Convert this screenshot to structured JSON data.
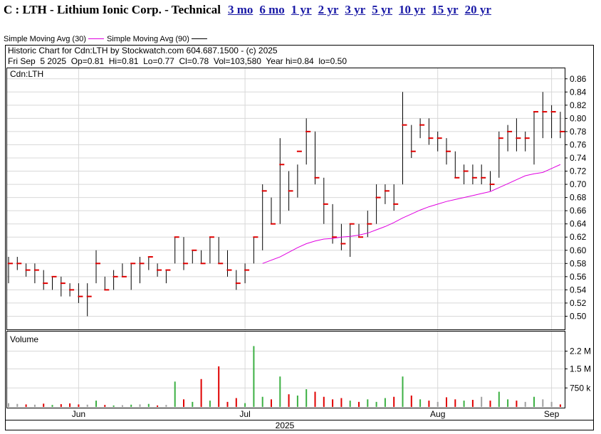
{
  "header": {
    "title": "C : LTH - Lithium Ionic Corp. - Technical",
    "links": [
      "3 mo",
      "6 mo",
      "1 yr",
      "2 yr",
      "3 yr",
      "5 yr",
      "10 yr",
      "15 yr",
      "20 yr"
    ]
  },
  "chart_data": {
    "type": "ohlc",
    "title": "Historic Chart for Cdn:LTH by Stockwatch.com 604.687.1500 - (c) 2025",
    "subtitle": "Fri Sep  5 2025  Op=0.81  Hi=0.81  Lo=0.77  Cl=0.78  Vol=103,580  Year hi=0.84  lo=0.50",
    "price_label": "Cdn:LTH",
    "volume_label": "Volume",
    "year_label": "2025",
    "categories": [
      null,
      null,
      null,
      null,
      null,
      null,
      null,
      null,
      "Jun",
      null,
      null,
      null,
      null,
      null,
      null,
      null,
      null,
      null,
      null,
      null,
      null,
      null,
      null,
      null,
      null,
      null,
      null,
      "Jul",
      null,
      null,
      null,
      null,
      null,
      null,
      null,
      null,
      null,
      null,
      null,
      null,
      null,
      null,
      null,
      null,
      null,
      null,
      null,
      null,
      null,
      "Aug",
      null,
      null,
      null,
      null,
      null,
      null,
      null,
      null,
      null,
      null,
      null,
      null,
      "Sep",
      null
    ],
    "high": [
      0.59,
      0.59,
      0.58,
      0.58,
      0.57,
      0.56,
      0.56,
      0.55,
      0.55,
      0.55,
      0.6,
      0.56,
      0.57,
      0.58,
      0.58,
      0.59,
      0.59,
      0.58,
      0.57,
      0.62,
      0.62,
      0.6,
      0.6,
      0.62,
      0.62,
      0.6,
      0.57,
      0.58,
      0.62,
      0.7,
      0.68,
      0.77,
      0.72,
      0.73,
      0.8,
      0.78,
      0.71,
      0.67,
      0.64,
      0.64,
      0.64,
      0.66,
      0.7,
      0.7,
      0.7,
      0.84,
      0.79,
      0.8,
      0.8,
      0.78,
      0.77,
      0.75,
      0.73,
      0.73,
      0.73,
      0.72,
      0.78,
      0.79,
      0.8,
      0.78,
      0.81,
      0.84,
      0.82,
      0.81
    ],
    "low": [
      0.55,
      0.57,
      0.56,
      0.55,
      0.54,
      0.54,
      0.53,
      0.53,
      0.52,
      0.5,
      0.55,
      0.54,
      0.54,
      0.56,
      0.54,
      0.55,
      0.57,
      0.56,
      0.55,
      0.58,
      0.57,
      0.58,
      0.58,
      0.58,
      0.58,
      0.56,
      0.54,
      0.55,
      0.58,
      0.6,
      0.64,
      0.64,
      0.66,
      0.68,
      0.73,
      0.7,
      0.64,
      0.61,
      0.6,
      0.59,
      0.62,
      0.62,
      0.64,
      0.67,
      0.66,
      0.7,
      0.74,
      0.77,
      0.76,
      0.75,
      0.73,
      0.71,
      0.7,
      0.7,
      0.7,
      0.69,
      0.71,
      0.75,
      0.75,
      0.75,
      0.73,
      0.77,
      0.77,
      0.77
    ],
    "close": [
      0.58,
      0.58,
      0.57,
      0.57,
      0.55,
      0.56,
      0.55,
      0.54,
      0.53,
      0.53,
      0.58,
      0.54,
      0.56,
      0.56,
      0.58,
      0.58,
      0.59,
      0.57,
      0.57,
      0.62,
      0.58,
      0.6,
      0.58,
      0.62,
      0.58,
      0.57,
      0.55,
      0.57,
      0.62,
      0.69,
      0.64,
      0.73,
      0.69,
      0.75,
      0.78,
      0.71,
      0.67,
      0.62,
      0.61,
      0.64,
      0.62,
      0.64,
      0.68,
      0.69,
      0.67,
      0.79,
      0.75,
      0.79,
      0.77,
      0.77,
      0.75,
      0.71,
      0.72,
      0.71,
      0.71,
      0.7,
      0.77,
      0.78,
      0.77,
      0.77,
      0.81,
      0.81,
      0.81,
      0.78
    ],
    "series": [
      {
        "name": "Simple Moving Avg (30)",
        "color": "#e000e0",
        "values": [
          null,
          null,
          null,
          null,
          null,
          null,
          null,
          null,
          null,
          null,
          null,
          null,
          null,
          null,
          null,
          null,
          null,
          null,
          null,
          null,
          null,
          null,
          null,
          null,
          null,
          null,
          null,
          null,
          null,
          0.58,
          0.585,
          0.59,
          0.597,
          0.604,
          0.61,
          0.614,
          0.617,
          0.618,
          0.62,
          0.621,
          0.623,
          0.626,
          0.631,
          0.636,
          0.642,
          0.649,
          0.655,
          0.661,
          0.666,
          0.67,
          0.674,
          0.677,
          0.68,
          0.683,
          0.686,
          0.689,
          0.695,
          0.701,
          0.707,
          0.713,
          0.716,
          0.718,
          0.724,
          0.73
        ]
      },
      {
        "name": "Simple Moving Avg (90)",
        "color": "#000000",
        "values": [
          null,
          null,
          null,
          null,
          null,
          null,
          null,
          null,
          null,
          null,
          null,
          null,
          null,
          null,
          null,
          null,
          null,
          null,
          null,
          null,
          null,
          null,
          null,
          null,
          null,
          null,
          null,
          null,
          null,
          null,
          null,
          null,
          null,
          null,
          null,
          null,
          null,
          null,
          null,
          null,
          null,
          null,
          null,
          null,
          null,
          null,
          null,
          null,
          null,
          null,
          null,
          null,
          null,
          null,
          null,
          null,
          null,
          null,
          null,
          null,
          null,
          null,
          null,
          null
        ]
      }
    ],
    "volume": [
      150000,
      120000,
      100000,
      90000,
      130000,
      80000,
      110000,
      140000,
      100000,
      90000,
      250000,
      80000,
      60000,
      70000,
      90000,
      100000,
      120000,
      60000,
      80000,
      1000000,
      300000,
      200000,
      1100000,
      250000,
      1600000,
      200000,
      350000,
      150000,
      2400000,
      400000,
      300000,
      1200000,
      500000,
      450000,
      700000,
      600000,
      400000,
      300000,
      350000,
      250000,
      200000,
      300000,
      200000,
      350000,
      400000,
      1200000,
      450000,
      300000,
      250000,
      200000,
      380000,
      300000,
      250000,
      280000,
      400000,
      250000,
      600000,
      300000,
      250000,
      200000,
      400000,
      300000,
      200000,
      100000
    ],
    "up_color": "#3cb043",
    "down_color": "#e00000",
    "flat_color": "#a0a0a0",
    "ylim": [
      0.48,
      0.877
    ],
    "yticks": [
      {
        "value": 0.5,
        "label": "0.50"
      },
      {
        "value": 0.52,
        "label": "0.52"
      },
      {
        "value": 0.54,
        "label": "0.54"
      },
      {
        "value": 0.56,
        "label": "0.56"
      },
      {
        "value": 0.58,
        "label": "0.58"
      },
      {
        "value": 0.6,
        "label": "0.60"
      },
      {
        "value": 0.62,
        "label": "0.62"
      },
      {
        "value": 0.64,
        "label": "0.64"
      },
      {
        "value": 0.66,
        "label": "0.66"
      },
      {
        "value": 0.68,
        "label": "0.68"
      },
      {
        "value": 0.7,
        "label": "0.70"
      },
      {
        "value": 0.72,
        "label": "0.72"
      },
      {
        "value": 0.74,
        "label": "0.74"
      },
      {
        "value": 0.76,
        "label": "0.76"
      },
      {
        "value": 0.78,
        "label": "0.78"
      },
      {
        "value": 0.8,
        "label": "0.80"
      },
      {
        "value": 0.82,
        "label": "0.82"
      },
      {
        "value": 0.84,
        "label": "0.84"
      },
      {
        "value": 0.86,
        "label": "0.86"
      }
    ],
    "y2lim": [
      0,
      3000000
    ],
    "y2ticks": [
      {
        "value": 750000,
        "label": "750 k"
      },
      {
        "value": 1500000,
        "label": "1.5 M"
      },
      {
        "value": 2200000,
        "label": "2.2 M"
      }
    ],
    "grid": true
  }
}
